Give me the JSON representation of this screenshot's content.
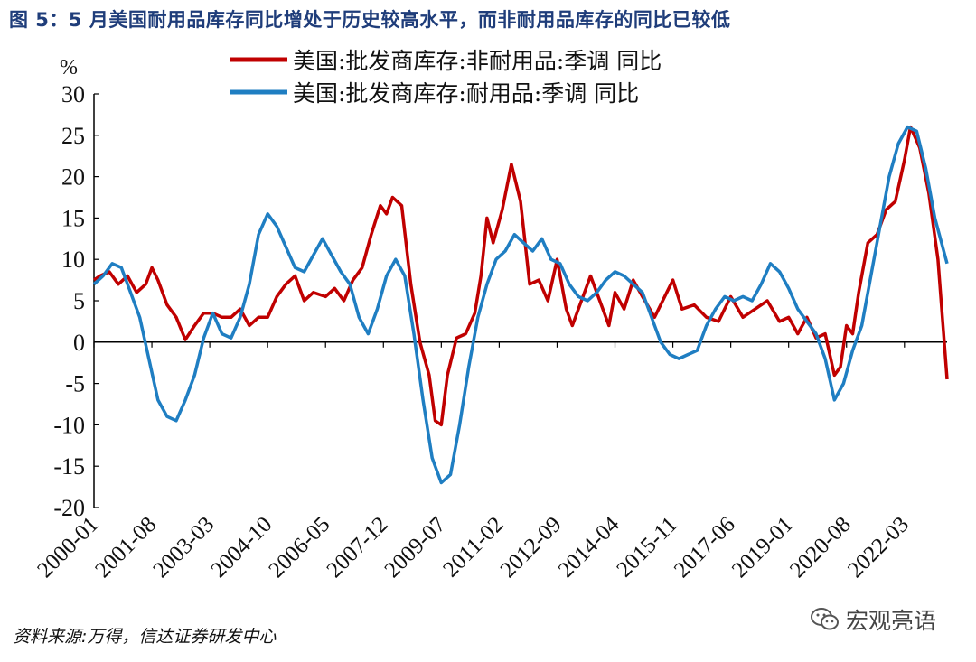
{
  "figure": {
    "title": "图 5：5 月美国耐用品库存同比增处于历史较高水平，而非耐用品库存的同比已较低",
    "source": "资料来源:万得，信达证券研发中心",
    "watermark": "宏观亮语",
    "watermark_icon": "wechat-icon"
  },
  "chart_data": {
    "type": "line",
    "y_unit": "%",
    "ylim": [
      -20,
      30
    ],
    "yticks": [
      30,
      25,
      20,
      15,
      10,
      5,
      0,
      -5,
      -10,
      -15,
      -20
    ],
    "xlim": [
      "2000-01",
      "2023-05"
    ],
    "xtick_labels": [
      "2000-01",
      "2001-08",
      "2003-03",
      "2004-10",
      "2006-05",
      "2007-12",
      "2009-07",
      "2011-02",
      "2012-09",
      "2014-04",
      "2015-11",
      "2017-06",
      "2019-01",
      "2020-08",
      "2022-03"
    ],
    "grid": false,
    "legend_position": "top-center",
    "series": [
      {
        "name": "美国:批发商库存:非耐用品:季调 同比",
        "color": "#c00000",
        "points": [
          [
            "2000-01",
            7.5
          ],
          [
            "2000-03",
            8.0
          ],
          [
            "2000-06",
            8.5
          ],
          [
            "2000-09",
            7.0
          ],
          [
            "2000-12",
            8.0
          ],
          [
            "2001-03",
            6.0
          ],
          [
            "2001-06",
            7.0
          ],
          [
            "2001-08",
            9.0
          ],
          [
            "2001-10",
            7.5
          ],
          [
            "2002-01",
            4.5
          ],
          [
            "2002-04",
            3.0
          ],
          [
            "2002-07",
            0.3
          ],
          [
            "2002-10",
            2.0
          ],
          [
            "2003-01",
            3.5
          ],
          [
            "2003-04",
            3.5
          ],
          [
            "2003-07",
            3.0
          ],
          [
            "2003-10",
            3.0
          ],
          [
            "2004-01",
            4.0
          ],
          [
            "2004-04",
            2.0
          ],
          [
            "2004-07",
            3.0
          ],
          [
            "2004-10",
            3.0
          ],
          [
            "2005-01",
            5.5
          ],
          [
            "2005-04",
            7.0
          ],
          [
            "2005-07",
            8.0
          ],
          [
            "2005-10",
            5.0
          ],
          [
            "2006-01",
            6.0
          ],
          [
            "2006-05",
            5.5
          ],
          [
            "2006-08",
            6.5
          ],
          [
            "2006-11",
            5.0
          ],
          [
            "2007-02",
            7.5
          ],
          [
            "2007-05",
            9.0
          ],
          [
            "2007-08",
            13.0
          ],
          [
            "2007-11",
            16.5
          ],
          [
            "2008-01",
            15.5
          ],
          [
            "2008-03",
            17.5
          ],
          [
            "2008-06",
            16.5
          ],
          [
            "2008-09",
            7.0
          ],
          [
            "2008-12",
            0.0
          ],
          [
            "2009-03",
            -4.0
          ],
          [
            "2009-05",
            -9.5
          ],
          [
            "2009-07",
            -10.0
          ],
          [
            "2009-09",
            -4.0
          ],
          [
            "2009-12",
            0.5
          ],
          [
            "2010-03",
            1.0
          ],
          [
            "2010-06",
            3.5
          ],
          [
            "2010-08",
            8.0
          ],
          [
            "2010-10",
            15.0
          ],
          [
            "2010-12",
            12.0
          ],
          [
            "2011-03",
            16.0
          ],
          [
            "2011-06",
            21.5
          ],
          [
            "2011-09",
            17.0
          ],
          [
            "2011-12",
            7.0
          ],
          [
            "2012-03",
            7.5
          ],
          [
            "2012-06",
            5.0
          ],
          [
            "2012-09",
            10.0
          ],
          [
            "2012-12",
            4.0
          ],
          [
            "2013-02",
            2.0
          ],
          [
            "2013-05",
            5.0
          ],
          [
            "2013-08",
            8.0
          ],
          [
            "2013-11",
            5.0
          ],
          [
            "2014-02",
            2.0
          ],
          [
            "2014-04",
            6.0
          ],
          [
            "2014-07",
            4.0
          ],
          [
            "2014-10",
            7.5
          ],
          [
            "2015-01",
            5.5
          ],
          [
            "2015-05",
            3.0
          ],
          [
            "2015-09",
            6.0
          ],
          [
            "2015-11",
            7.5
          ],
          [
            "2016-02",
            4.0
          ],
          [
            "2016-06",
            4.5
          ],
          [
            "2016-10",
            3.0
          ],
          [
            "2017-02",
            2.5
          ],
          [
            "2017-06",
            5.5
          ],
          [
            "2017-10",
            3.0
          ],
          [
            "2018-02",
            4.0
          ],
          [
            "2018-06",
            5.0
          ],
          [
            "2018-10",
            2.5
          ],
          [
            "2019-01",
            3.0
          ],
          [
            "2019-04",
            1.0
          ],
          [
            "2019-07",
            3.0
          ],
          [
            "2019-10",
            0.5
          ],
          [
            "2020-01",
            1.0
          ],
          [
            "2020-04",
            -4.0
          ],
          [
            "2020-06",
            -3.0
          ],
          [
            "2020-08",
            2.0
          ],
          [
            "2020-10",
            1.0
          ],
          [
            "2020-12",
            6.0
          ],
          [
            "2021-03",
            12.0
          ],
          [
            "2021-06",
            13.0
          ],
          [
            "2021-09",
            16.0
          ],
          [
            "2021-12",
            17.0
          ],
          [
            "2022-03",
            22.0
          ],
          [
            "2022-05",
            26.0
          ],
          [
            "2022-08",
            23.5
          ],
          [
            "2022-11",
            18.0
          ],
          [
            "2023-02",
            10.0
          ],
          [
            "2023-05",
            -4.5
          ]
        ]
      },
      {
        "name": "美国:批发商库存:耐用品:季调 同比",
        "color": "#1f7ec2",
        "points": [
          [
            "2000-01",
            7.0
          ],
          [
            "2000-04",
            8.0
          ],
          [
            "2000-07",
            9.5
          ],
          [
            "2000-10",
            9.0
          ],
          [
            "2001-01",
            6.0
          ],
          [
            "2001-04",
            3.0
          ],
          [
            "2001-07",
            -2.0
          ],
          [
            "2001-10",
            -7.0
          ],
          [
            "2002-01",
            -9.0
          ],
          [
            "2002-04",
            -9.5
          ],
          [
            "2002-07",
            -7.0
          ],
          [
            "2002-10",
            -4.0
          ],
          [
            "2003-01",
            0.5
          ],
          [
            "2003-04",
            3.5
          ],
          [
            "2003-07",
            1.0
          ],
          [
            "2003-10",
            0.5
          ],
          [
            "2004-01",
            3.0
          ],
          [
            "2004-04",
            7.0
          ],
          [
            "2004-07",
            13.0
          ],
          [
            "2004-10",
            15.5
          ],
          [
            "2005-01",
            14.0
          ],
          [
            "2005-04",
            11.5
          ],
          [
            "2005-07",
            9.0
          ],
          [
            "2005-10",
            8.5
          ],
          [
            "2006-01",
            10.5
          ],
          [
            "2006-04",
            12.5
          ],
          [
            "2006-07",
            10.5
          ],
          [
            "2006-10",
            8.5
          ],
          [
            "2007-01",
            7.0
          ],
          [
            "2007-04",
            3.0
          ],
          [
            "2007-07",
            1.0
          ],
          [
            "2007-10",
            4.0
          ],
          [
            "2008-01",
            8.0
          ],
          [
            "2008-04",
            10.0
          ],
          [
            "2008-07",
            8.0
          ],
          [
            "2008-10",
            1.0
          ],
          [
            "2009-01",
            -7.0
          ],
          [
            "2009-04",
            -14.0
          ],
          [
            "2009-07",
            -17.0
          ],
          [
            "2009-10",
            -16.0
          ],
          [
            "2010-01",
            -10.0
          ],
          [
            "2010-04",
            -3.0
          ],
          [
            "2010-07",
            3.0
          ],
          [
            "2010-10",
            7.0
          ],
          [
            "2011-01",
            10.0
          ],
          [
            "2011-04",
            11.0
          ],
          [
            "2011-07",
            13.0
          ],
          [
            "2011-10",
            12.0
          ],
          [
            "2012-01",
            11.0
          ],
          [
            "2012-04",
            12.5
          ],
          [
            "2012-07",
            10.0
          ],
          [
            "2012-10",
            9.5
          ],
          [
            "2013-01",
            7.0
          ],
          [
            "2013-04",
            5.5
          ],
          [
            "2013-07",
            5.0
          ],
          [
            "2013-10",
            6.0
          ],
          [
            "2014-01",
            7.5
          ],
          [
            "2014-04",
            8.5
          ],
          [
            "2014-07",
            8.0
          ],
          [
            "2014-10",
            7.0
          ],
          [
            "2015-01",
            6.0
          ],
          [
            "2015-04",
            3.0
          ],
          [
            "2015-07",
            0.0
          ],
          [
            "2015-10",
            -1.5
          ],
          [
            "2016-01",
            -2.0
          ],
          [
            "2016-04",
            -1.5
          ],
          [
            "2016-07",
            -1.0
          ],
          [
            "2016-10",
            2.0
          ],
          [
            "2017-01",
            4.0
          ],
          [
            "2017-04",
            5.5
          ],
          [
            "2017-07",
            5.0
          ],
          [
            "2017-10",
            5.5
          ],
          [
            "2018-01",
            5.0
          ],
          [
            "2018-04",
            7.0
          ],
          [
            "2018-07",
            9.5
          ],
          [
            "2018-10",
            8.5
          ],
          [
            "2019-01",
            6.5
          ],
          [
            "2019-04",
            4.0
          ],
          [
            "2019-07",
            2.5
          ],
          [
            "2019-10",
            1.0
          ],
          [
            "2020-01",
            -2.0
          ],
          [
            "2020-04",
            -7.0
          ],
          [
            "2020-07",
            -5.0
          ],
          [
            "2020-10",
            -1.0
          ],
          [
            "2021-01",
            2.0
          ],
          [
            "2021-04",
            8.0
          ],
          [
            "2021-07",
            14.0
          ],
          [
            "2021-10",
            20.0
          ],
          [
            "2022-01",
            24.0
          ],
          [
            "2022-04",
            26.0
          ],
          [
            "2022-07",
            25.5
          ],
          [
            "2022-10",
            21.0
          ],
          [
            "2023-01",
            15.0
          ],
          [
            "2023-05",
            9.5
          ]
        ]
      }
    ]
  }
}
